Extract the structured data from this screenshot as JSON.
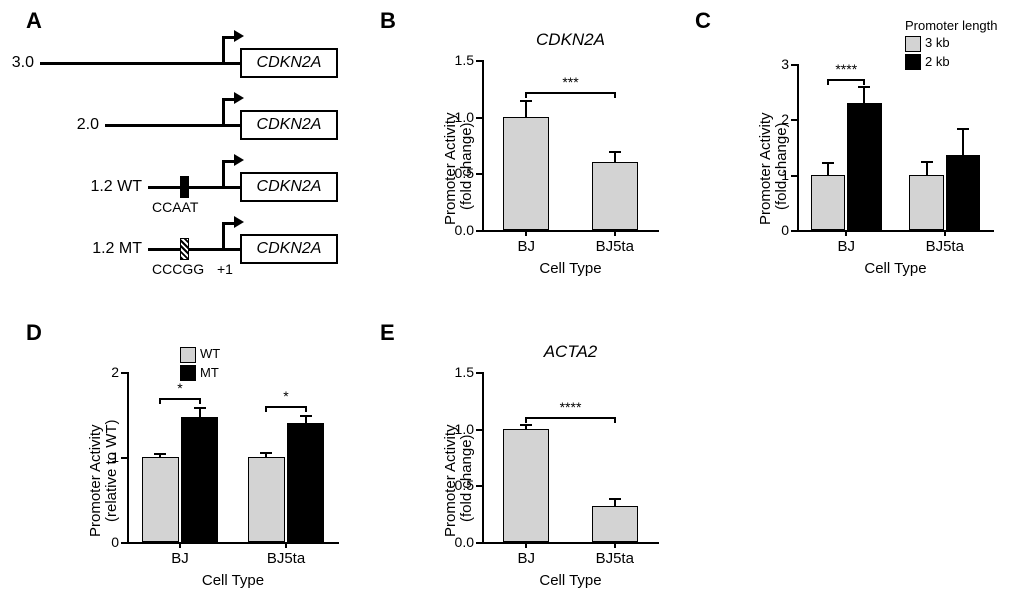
{
  "panel_labels": {
    "A": "A",
    "B": "B",
    "C": "C",
    "D": "D",
    "E": "E"
  },
  "panelA": {
    "gene_label": "CDKN2A",
    "plus_one": "+1",
    "constructs": [
      {
        "label": "3.0",
        "line_len": 200
      },
      {
        "label": "2.0",
        "line_len": 135
      },
      {
        "label": "1.2 WT",
        "line_len": 92,
        "motif": "solid",
        "motif_text": "CCAAT"
      },
      {
        "label": "1.2 MT",
        "line_len": 92,
        "motif": "hatched",
        "motif_text": "CCCGG"
      }
    ]
  },
  "panelB": {
    "title": "CDKN2A",
    "ylabel_top": "Promoter Activity",
    "ylabel_bot": "(fold change)",
    "xlabel": "Cell Type",
    "ymax": 1.5,
    "ytick_step": 0.5,
    "categories": [
      "BJ",
      "BJ5ta"
    ],
    "series": [
      {
        "color": "gray",
        "values": [
          1.0,
          0.6
        ]
      }
    ],
    "whisker": [
      [
        0.15
      ],
      [
        0.1
      ]
    ],
    "sig": [
      {
        "from": 0,
        "to": 1,
        "text": "***",
        "y": 1.22
      }
    ],
    "colors": {
      "gray": "#d3d3d3",
      "black": "#000000"
    }
  },
  "panelC": {
    "ylabel_top": "Promoter Activity",
    "ylabel_bot": "(fold change)",
    "xlabel": "Cell Type",
    "ymax": 3.0,
    "ytick_step": 1.0,
    "categories": [
      "BJ",
      "BJ5ta"
    ],
    "legend_title": "Promoter length",
    "legend_items": [
      {
        "swatch": "gray",
        "label": "3 kb"
      },
      {
        "swatch": "black",
        "label": "2 kb"
      }
    ],
    "series": [
      {
        "color": "gray",
        "values": [
          1.0,
          1.0
        ]
      },
      {
        "color": "black",
        "values": [
          2.3,
          1.35
        ]
      }
    ],
    "whisker": [
      [
        0.22,
        0.3
      ],
      [
        0.25,
        0.5
      ]
    ],
    "sig": [
      {
        "from": 0,
        "pair": true,
        "text": "****",
        "y": 2.72
      }
    ]
  },
  "panelD": {
    "ylabel_top": "Promoter Activity",
    "ylabel_bot": "(relative to WT)",
    "xlabel": "Cell Type",
    "ymax": 2.0,
    "ytick_step": 1.0,
    "categories": [
      "BJ",
      "BJ5ta"
    ],
    "legend_items": [
      {
        "swatch": "gray",
        "label": "WT"
      },
      {
        "swatch": "black",
        "label": "MT"
      }
    ],
    "series": [
      {
        "color": "gray",
        "values": [
          1.0,
          1.0
        ]
      },
      {
        "color": "black",
        "values": [
          1.47,
          1.4
        ]
      }
    ],
    "whisker": [
      [
        0.05,
        0.12
      ],
      [
        0.06,
        0.1
      ]
    ],
    "sig": [
      {
        "from": 0,
        "pair": true,
        "text": "*",
        "y": 1.7
      },
      {
        "from": 1,
        "pair": true,
        "text": "*",
        "y": 1.6
      }
    ]
  },
  "panelE": {
    "title": "ACTA2",
    "ylabel_top": "Promoter Activity",
    "ylabel_bot": "(fold change)",
    "xlabel": "Cell Type",
    "ymax": 1.5,
    "ytick_step": 0.5,
    "categories": [
      "BJ",
      "BJ5ta"
    ],
    "series": [
      {
        "color": "gray",
        "values": [
          1.0,
          0.32
        ]
      }
    ],
    "whisker": [
      [
        0.04
      ],
      [
        0.07
      ]
    ],
    "sig": [
      {
        "from": 0,
        "to": 1,
        "text": "****",
        "y": 1.1
      }
    ]
  },
  "style": {
    "bar_gray": "#d3d3d3",
    "bar_black": "#000000",
    "axis_color": "#000000",
    "font_family": "Arial"
  }
}
